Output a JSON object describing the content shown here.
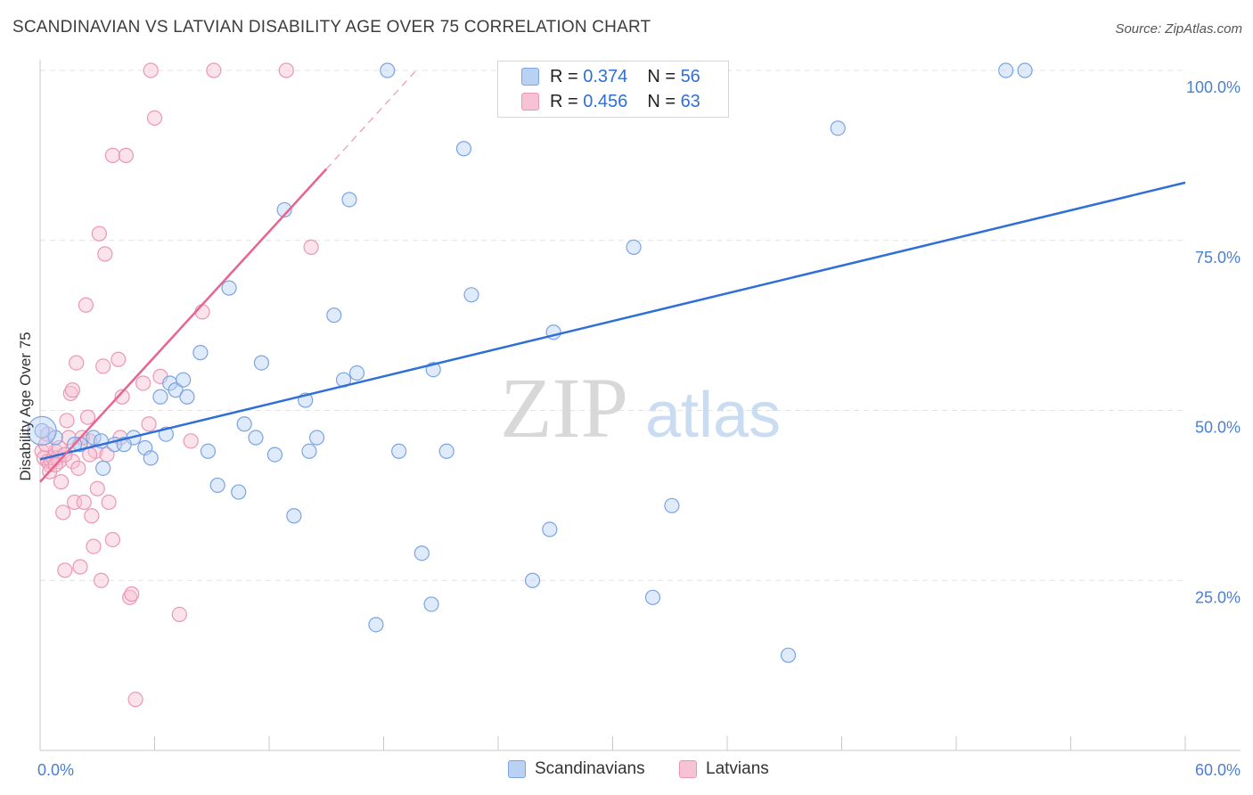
{
  "title": "SCANDINAVIAN VS LATVIAN DISABILITY AGE OVER 75 CORRELATION CHART",
  "source": "Source: ZipAtlas.com",
  "watermark": {
    "zip": "ZIP",
    "atlas": "atlas"
  },
  "legend": {
    "rows": [
      {
        "r_label": "R =",
        "r_value": "0.374",
        "n_label": "N =",
        "n_value": "56"
      },
      {
        "r_label": "R =",
        "r_value": "0.456",
        "n_label": "N =",
        "n_value": "63"
      }
    ]
  },
  "bottom_legend": {
    "scandinavians": "Scandinavians",
    "latvians": "Latvians"
  },
  "colors": {
    "blue": "#2f6fd6",
    "blue_fill": "#b9d1f3",
    "blue_stroke": "#7aa4e3",
    "pink": "#e8648f",
    "pink_fill": "#f7c2d3",
    "pink_stroke": "#ec97b2",
    "grid": "#e3e3e3",
    "tick_label": "#4a7fd0"
  },
  "chart_data": {
    "type": "scatter",
    "title": "SCANDINAVIAN VS LATVIAN DISABILITY AGE OVER 75 CORRELATION CHART",
    "xlabel": "",
    "ylabel": "Disability Age Over 75",
    "xlim": [
      0,
      60
    ],
    "ylim": [
      0,
      100
    ],
    "x_tick_labels": [
      "0.0%",
      "60.0%"
    ],
    "y_tick_labels": [
      "100.0%",
      "75.0%",
      "50.0%",
      "25.0%"
    ],
    "y_ticks": [
      100,
      75,
      50,
      25
    ],
    "grid": true,
    "legend_position": "top-center",
    "series": [
      {
        "name": "Scandinavians",
        "r": 0.374,
        "n": 56,
        "trend": {
          "x": [
            0,
            60
          ],
          "y": [
            42.8,
            83.5
          ]
        },
        "points": [
          [
            0.1,
            47
          ],
          [
            0.8,
            46
          ],
          [
            2.1,
            45
          ],
          [
            2.8,
            46
          ],
          [
            3.3,
            41.5
          ],
          [
            3.2,
            45.5
          ],
          [
            3.9,
            45
          ],
          [
            4.9,
            46
          ],
          [
            5.5,
            44.5
          ],
          [
            5.8,
            43
          ],
          [
            6.6,
            46.5
          ],
          [
            6.3,
            52
          ],
          [
            6.8,
            54
          ],
          [
            7.1,
            53
          ],
          [
            7.5,
            54.5
          ],
          [
            7.7,
            52
          ],
          [
            8.4,
            58.5
          ],
          [
            8.8,
            44
          ],
          [
            9.3,
            39
          ],
          [
            9.9,
            68
          ],
          [
            10.4,
            38
          ],
          [
            10.7,
            48
          ],
          [
            11.3,
            46
          ],
          [
            11.6,
            57
          ],
          [
            12.3,
            43.5
          ],
          [
            12.8,
            79.5
          ],
          [
            13.3,
            34.5
          ],
          [
            13.9,
            51.5
          ],
          [
            14.1,
            44
          ],
          [
            14.5,
            46
          ],
          [
            15.4,
            64
          ],
          [
            15.9,
            54.5
          ],
          [
            16.2,
            81
          ],
          [
            16.6,
            55.5
          ],
          [
            18.2,
            100
          ],
          [
            18.8,
            44
          ],
          [
            20,
            29
          ],
          [
            20.6,
            56
          ],
          [
            20.5,
            21.5
          ],
          [
            21.3,
            44
          ],
          [
            22.2,
            88.5
          ],
          [
            22.6,
            67
          ],
          [
            25.8,
            25
          ],
          [
            26.7,
            32.5
          ],
          [
            26.9,
            61.5
          ],
          [
            31.1,
            74
          ],
          [
            32.1,
            22.5
          ],
          [
            33.1,
            36
          ],
          [
            39.2,
            14
          ],
          [
            41.8,
            91.5
          ],
          [
            50.6,
            100
          ],
          [
            51.6,
            100
          ],
          [
            17.6,
            18.5
          ],
          [
            25.3,
            100
          ],
          [
            1.8,
            45
          ],
          [
            4.4,
            45
          ]
        ]
      },
      {
        "name": "Latvians",
        "r": 0.456,
        "n": 63,
        "trend": {
          "x": [
            0,
            15
          ],
          "y": [
            39.5,
            85.5
          ]
        },
        "trend_dashed": {
          "x": [
            15,
            19.7
          ],
          "y": [
            85.5,
            100
          ]
        },
        "points": [
          [
            0.1,
            44
          ],
          [
            0.2,
            43
          ],
          [
            0.4,
            42.5
          ],
          [
            0.5,
            42
          ],
          [
            0.6,
            42.5
          ],
          [
            0.7,
            43
          ],
          [
            0.8,
            44
          ],
          [
            0.9,
            43
          ],
          [
            1,
            42.5
          ],
          [
            1.1,
            39.5
          ],
          [
            1.2,
            35
          ],
          [
            1.3,
            26.5
          ],
          [
            1.4,
            48.5
          ],
          [
            1.5,
            46
          ],
          [
            1.6,
            52.5
          ],
          [
            1.7,
            42.5
          ],
          [
            1.8,
            36.5
          ],
          [
            1.9,
            57
          ],
          [
            2,
            41.5
          ],
          [
            2.1,
            27
          ],
          [
            2.3,
            36.5
          ],
          [
            2.4,
            65.5
          ],
          [
            2.5,
            49
          ],
          [
            2.6,
            45.5
          ],
          [
            2.7,
            34.5
          ],
          [
            2.8,
            30
          ],
          [
            2.9,
            44
          ],
          [
            3,
            38.5
          ],
          [
            3.1,
            76
          ],
          [
            3.2,
            25
          ],
          [
            3.3,
            56.5
          ],
          [
            3.4,
            73
          ],
          [
            3.5,
            43.5
          ],
          [
            3.6,
            36.5
          ],
          [
            3.8,
            31
          ],
          [
            3.8,
            87.5
          ],
          [
            4.1,
            57.5
          ],
          [
            4.2,
            46
          ],
          [
            4.3,
            52
          ],
          [
            4.5,
            87.5
          ],
          [
            4.7,
            22.5
          ],
          [
            4.8,
            23
          ],
          [
            5,
            7.5
          ],
          [
            5.4,
            54
          ],
          [
            5.7,
            48
          ],
          [
            6,
            93
          ],
          [
            6.3,
            55
          ],
          [
            7.3,
            20
          ],
          [
            7.9,
            45.5
          ],
          [
            8.5,
            64.5
          ],
          [
            14.2,
            74
          ],
          [
            5.8,
            100
          ],
          [
            9.1,
            100
          ],
          [
            12.9,
            100
          ],
          [
            0.3,
            45
          ],
          [
            0.5,
            41
          ],
          [
            1,
            44.5
          ],
          [
            2.2,
            46
          ],
          [
            1.3,
            43.5
          ],
          [
            0.8,
            42
          ],
          [
            1.7,
            53
          ],
          [
            0.4,
            46.5
          ],
          [
            2.6,
            43.5
          ]
        ]
      }
    ]
  }
}
